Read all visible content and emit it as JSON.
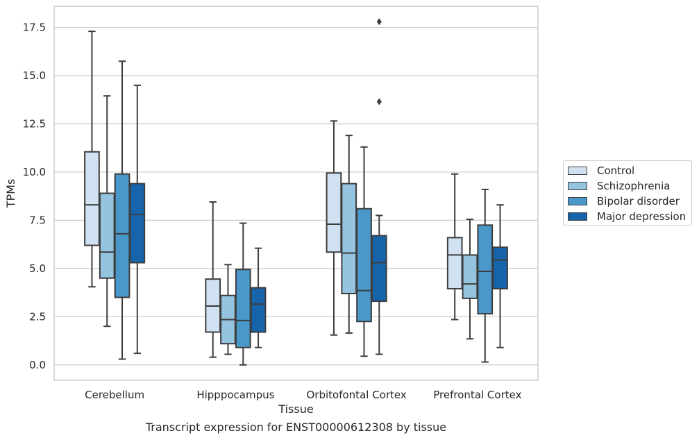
{
  "chart_data": {
    "type": "box",
    "title": "",
    "caption": "Transcript expression for ENST00000612308 by tissue",
    "xlabel": "Tissue",
    "ylabel": "TPMs",
    "ylim": [
      -0.8,
      18.6
    ],
    "yticks": [
      "0.0",
      "2.5",
      "5.0",
      "7.5",
      "10.0",
      "12.5",
      "15.0",
      "17.5"
    ],
    "grid": "horizontal",
    "legend_placement": "right",
    "categories": [
      "Cerebellum",
      "Hipppocampus",
      "Orbitofontal Cortex",
      "Prefrontal Cortex"
    ],
    "series": [
      {
        "name": "Control",
        "color": "#d0e1f2",
        "boxes": [
          {
            "whislo": 4.05,
            "q1": 6.2,
            "med": 8.3,
            "q3": 11.05,
            "whishi": 17.3,
            "fliers": []
          },
          {
            "whislo": 0.4,
            "q1": 1.7,
            "med": 3.05,
            "q3": 4.45,
            "whishi": 8.45,
            "fliers": []
          },
          {
            "whislo": 1.55,
            "q1": 5.85,
            "med": 7.3,
            "q3": 9.95,
            "whishi": 12.65,
            "fliers": []
          },
          {
            "whislo": 2.35,
            "q1": 3.95,
            "med": 5.7,
            "q3": 6.6,
            "whishi": 9.9,
            "fliers": []
          }
        ]
      },
      {
        "name": "Schizophrenia",
        "color": "#94c4df",
        "boxes": [
          {
            "whislo": 2.0,
            "q1": 4.5,
            "med": 5.85,
            "q3": 8.9,
            "whishi": 13.95,
            "fliers": []
          },
          {
            "whislo": 0.55,
            "q1": 1.1,
            "med": 2.35,
            "q3": 3.6,
            "whishi": 5.2,
            "fliers": []
          },
          {
            "whislo": 1.65,
            "q1": 3.7,
            "med": 5.8,
            "q3": 9.4,
            "whishi": 11.9,
            "fliers": []
          },
          {
            "whislo": 1.35,
            "q1": 3.45,
            "med": 4.2,
            "q3": 5.7,
            "whishi": 7.55,
            "fliers": []
          }
        ]
      },
      {
        "name": "Bipolar disorder",
        "color": "#4a98c9",
        "boxes": [
          {
            "whislo": 0.3,
            "q1": 3.5,
            "med": 6.8,
            "q3": 9.9,
            "whishi": 15.75,
            "fliers": []
          },
          {
            "whislo": 0.0,
            "q1": 0.9,
            "med": 2.3,
            "q3": 4.95,
            "whishi": 7.35,
            "fliers": []
          },
          {
            "whislo": 0.45,
            "q1": 2.25,
            "med": 3.85,
            "q3": 8.1,
            "whishi": 11.3,
            "fliers": []
          },
          {
            "whislo": 0.15,
            "q1": 2.65,
            "med": 4.85,
            "q3": 7.25,
            "whishi": 9.1,
            "fliers": []
          }
        ]
      },
      {
        "name": "Major depression",
        "color": "#1764ab",
        "boxes": [
          {
            "whislo": 0.6,
            "q1": 5.3,
            "med": 7.8,
            "q3": 9.4,
            "whishi": 14.5,
            "fliers": []
          },
          {
            "whislo": 0.9,
            "q1": 1.7,
            "med": 3.15,
            "q3": 4.0,
            "whishi": 6.05,
            "fliers": []
          },
          {
            "whislo": 0.55,
            "q1": 3.3,
            "med": 5.3,
            "q3": 6.7,
            "whishi": 7.75,
            "fliers": [
              13.65,
              17.8
            ]
          },
          {
            "whislo": 0.9,
            "q1": 3.95,
            "med": 5.45,
            "q3": 6.1,
            "whishi": 8.3,
            "fliers": []
          }
        ]
      }
    ]
  }
}
